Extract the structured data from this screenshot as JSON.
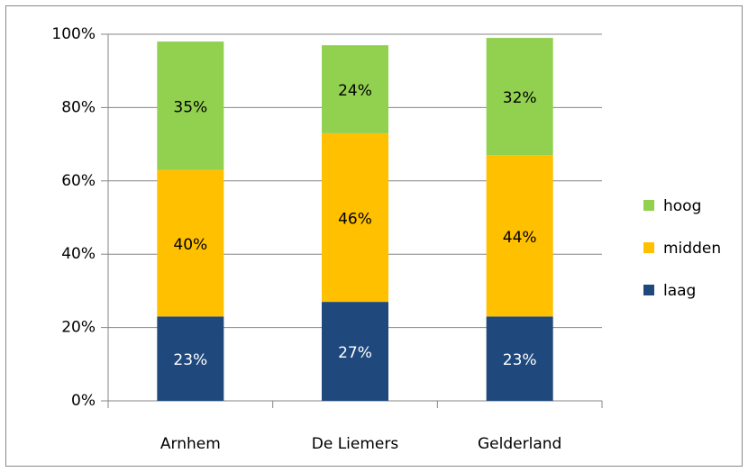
{
  "chart_data": {
    "type": "bar",
    "stacked": true,
    "categories": [
      "Arnhem",
      "De Liemers",
      "Gelderland"
    ],
    "series": [
      {
        "name": "laag",
        "color": "#1f497d",
        "values": [
          23,
          27,
          23
        ],
        "value_labels": [
          "23%",
          "27%",
          "23%"
        ]
      },
      {
        "name": "midden",
        "color": "#ffc000",
        "values": [
          40,
          46,
          44
        ],
        "value_labels": [
          "40%",
          "46%",
          "44%"
        ]
      },
      {
        "name": "hoog",
        "color": "#92d050",
        "values": [
          35,
          24,
          32
        ],
        "value_labels": [
          "35%",
          "24%",
          "32%"
        ]
      }
    ],
    "ylim": [
      0,
      100
    ],
    "yticks": [
      {
        "value": 0,
        "label": "0%"
      },
      {
        "value": 20,
        "label": "20%"
      },
      {
        "value": 40,
        "label": "40%"
      },
      {
        "value": 60,
        "label": "60%"
      },
      {
        "value": 80,
        "label": "80%"
      },
      {
        "value": 100,
        "label": "100%"
      }
    ],
    "grid": true,
    "legend": "right"
  }
}
